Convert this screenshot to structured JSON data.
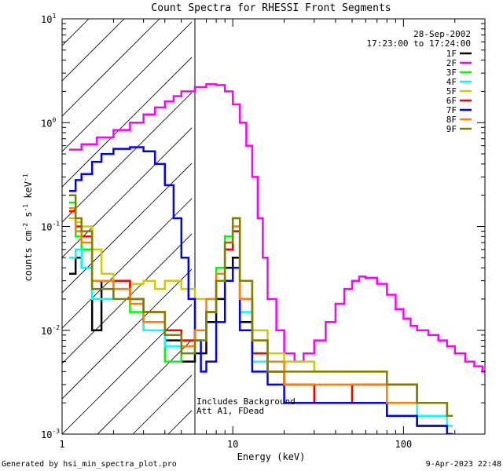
{
  "chart_data": {
    "type": "line",
    "title": "Count Spectra for RHESSI Front Segments",
    "xlabel": "Energy (keV)",
    "ylabel_main": "counts cm",
    "ylabel_exp1": "-2",
    "ylabel_mid": " s",
    "ylabel_exp2": "-1",
    "ylabel_end": " keV",
    "ylabel_exp3": "-1",
    "x_scale": "log",
    "y_scale": "log",
    "xlim": [
      1,
      300
    ],
    "ylim": [
      0.001,
      10
    ],
    "x_ticks": [
      {
        "value": 1,
        "label": "1"
      },
      {
        "value": 10,
        "label": "10"
      },
      {
        "value": 100,
        "label": "100"
      }
    ],
    "y_ticks": [
      {
        "value": 0.001,
        "base": "10",
        "exp": "-3"
      },
      {
        "value": 0.01,
        "base": "10",
        "exp": "-2"
      },
      {
        "value": 0.1,
        "base": "10",
        "exp": "-1"
      },
      {
        "value": 1,
        "base": "10",
        "exp": "0"
      },
      {
        "value": 10,
        "base": "10",
        "exp": "1"
      }
    ],
    "date": "28-Sep-2002",
    "time_range": "17:23:00 to 17:24:00",
    "attenuator_boundary_kev": 6,
    "annotations": [
      "Includes Background",
      "Att A1, FDead"
    ],
    "series": [
      {
        "name": "1F",
        "color": "#000000",
        "points": [
          [
            1.1,
            0.035
          ],
          [
            1.2,
            0.05
          ],
          [
            1.3,
            0.04
          ],
          [
            1.5,
            0.01
          ],
          [
            1.7,
            0.03
          ],
          [
            2,
            0.03
          ],
          [
            2.5,
            0.02
          ],
          [
            3,
            0.012
          ],
          [
            4,
            0.008
          ],
          [
            5,
            0.005
          ],
          [
            6,
            0.006
          ],
          [
            7,
            0.012
          ],
          [
            8,
            0.02
          ],
          [
            9,
            0.04
          ],
          [
            10,
            0.05
          ],
          [
            11,
            0.012
          ],
          [
            13,
            0.006
          ],
          [
            16,
            0.004
          ],
          [
            20,
            0.003
          ],
          [
            30,
            0.002
          ],
          [
            50,
            0.002
          ],
          [
            80,
            0.0015
          ],
          [
            120,
            0.0012
          ],
          [
            180,
            0.001
          ]
        ]
      },
      {
        "name": "2F",
        "color": "#ff00ff",
        "points": [
          [
            1.1,
            0.55
          ],
          [
            1.3,
            0.62
          ],
          [
            1.6,
            0.72
          ],
          [
            2,
            0.85
          ],
          [
            2.5,
            1.0
          ],
          [
            3,
            1.2
          ],
          [
            3.5,
            1.4
          ],
          [
            4,
            1.6
          ],
          [
            4.5,
            1.8
          ],
          [
            5,
            2.0
          ],
          [
            6,
            2.2
          ],
          [
            7,
            2.35
          ],
          [
            8,
            2.3
          ],
          [
            9,
            2.0
          ],
          [
            10,
            1.5
          ],
          [
            11,
            1.0
          ],
          [
            12,
            0.6
          ],
          [
            13,
            0.3
          ],
          [
            14,
            0.12
          ],
          [
            15,
            0.05
          ],
          [
            16,
            0.02
          ],
          [
            18,
            0.01
          ],
          [
            20,
            0.006
          ],
          [
            23,
            0.005
          ],
          [
            26,
            0.006
          ],
          [
            30,
            0.008
          ],
          [
            35,
            0.012
          ],
          [
            40,
            0.018
          ],
          [
            45,
            0.025
          ],
          [
            50,
            0.03
          ],
          [
            55,
            0.033
          ],
          [
            60,
            0.032
          ],
          [
            70,
            0.028
          ],
          [
            80,
            0.022
          ],
          [
            90,
            0.016
          ],
          [
            100,
            0.013
          ],
          [
            110,
            0.011
          ],
          [
            120,
            0.01
          ],
          [
            140,
            0.009
          ],
          [
            160,
            0.008
          ],
          [
            180,
            0.007
          ],
          [
            200,
            0.006
          ],
          [
            230,
            0.005
          ],
          [
            260,
            0.0045
          ],
          [
            290,
            0.004
          ]
        ]
      },
      {
        "name": "3F",
        "color": "#00ff00",
        "points": [
          [
            1.1,
            0.17
          ],
          [
            1.2,
            0.08
          ],
          [
            1.3,
            0.06
          ],
          [
            1.5,
            0.02
          ],
          [
            2,
            0.03
          ],
          [
            2.5,
            0.015
          ],
          [
            3,
            0.01
          ],
          [
            4,
            0.005
          ],
          [
            5,
            0.008
          ],
          [
            6,
            0.01
          ],
          [
            7,
            0.015
          ],
          [
            8,
            0.04
          ],
          [
            9,
            0.08
          ],
          [
            10,
            0.12
          ],
          [
            11,
            0.02
          ],
          [
            13,
            0.006
          ],
          [
            16,
            0.004
          ],
          [
            20,
            0.003
          ],
          [
            30,
            0.002
          ],
          [
            50,
            0.003
          ],
          [
            80,
            0.003
          ],
          [
            120,
            0.002
          ],
          [
            180,
            0.0015
          ]
        ]
      },
      {
        "name": "4F",
        "color": "#00ffff",
        "points": [
          [
            1.1,
            0.05
          ],
          [
            1.2,
            0.06
          ],
          [
            1.3,
            0.04
          ],
          [
            1.5,
            0.02
          ],
          [
            1.7,
            0.02
          ],
          [
            2,
            0.025
          ],
          [
            2.5,
            0.02
          ],
          [
            3,
            0.01
          ],
          [
            4,
            0.007
          ],
          [
            5,
            0.006
          ],
          [
            6,
            0.008
          ],
          [
            7,
            0.015
          ],
          [
            8,
            0.03
          ],
          [
            9,
            0.06
          ],
          [
            10,
            0.09
          ],
          [
            11,
            0.015
          ],
          [
            13,
            0.005
          ],
          [
            16,
            0.004
          ],
          [
            20,
            0.003
          ],
          [
            30,
            0.002
          ],
          [
            50,
            0.002
          ],
          [
            80,
            0.002
          ],
          [
            120,
            0.0015
          ],
          [
            180,
            0.0012
          ]
        ]
      },
      {
        "name": "5F",
        "color": "#cccc00",
        "points": [
          [
            1.1,
            0.12
          ],
          [
            1.2,
            0.11
          ],
          [
            1.3,
            0.1
          ],
          [
            1.5,
            0.06
          ],
          [
            1.7,
            0.035
          ],
          [
            2,
            0.03
          ],
          [
            2.5,
            0.028
          ],
          [
            3,
            0.03
          ],
          [
            3.5,
            0.025
          ],
          [
            4,
            0.03
          ],
          [
            5,
            0.025
          ],
          [
            6,
            0.02
          ],
          [
            7,
            0.02
          ],
          [
            8,
            0.03
          ],
          [
            9,
            0.06
          ],
          [
            10,
            0.1
          ],
          [
            11,
            0.03
          ],
          [
            13,
            0.01
          ],
          [
            16,
            0.006
          ],
          [
            20,
            0.005
          ],
          [
            30,
            0.004
          ],
          [
            50,
            0.004
          ],
          [
            80,
            0.003
          ],
          [
            120,
            0.002
          ],
          [
            180,
            0.0015
          ]
        ]
      },
      {
        "name": "6F",
        "color": "#ff0000",
        "points": [
          [
            1.1,
            0.14
          ],
          [
            1.2,
            0.1
          ],
          [
            1.3,
            0.08
          ],
          [
            1.5,
            0.03
          ],
          [
            2,
            0.03
          ],
          [
            2.5,
            0.02
          ],
          [
            3,
            0.015
          ],
          [
            4,
            0.01
          ],
          [
            5,
            0.008
          ],
          [
            6,
            0.01
          ],
          [
            7,
            0.015
          ],
          [
            8,
            0.03
          ],
          [
            9,
            0.06
          ],
          [
            10,
            0.09
          ],
          [
            11,
            0.02
          ],
          [
            13,
            0.006
          ],
          [
            16,
            0.004
          ],
          [
            20,
            0.003
          ],
          [
            30,
            0.002
          ],
          [
            50,
            0.003
          ],
          [
            80,
            0.003
          ],
          [
            120,
            0.002
          ],
          [
            180,
            0.0015
          ]
        ]
      },
      {
        "name": "7F",
        "color": "#0000ff",
        "points": [
          [
            1.1,
            0.22
          ],
          [
            1.2,
            0.28
          ],
          [
            1.3,
            0.32
          ],
          [
            1.5,
            0.42
          ],
          [
            1.7,
            0.5
          ],
          [
            2,
            0.56
          ],
          [
            2.5,
            0.58
          ],
          [
            3,
            0.53
          ],
          [
            3.5,
            0.4
          ],
          [
            4,
            0.25
          ],
          [
            4.5,
            0.12
          ],
          [
            5,
            0.05
          ],
          [
            5.5,
            0.02
          ],
          [
            6,
            0.008
          ],
          [
            6.5,
            0.004
          ],
          [
            7,
            0.005
          ],
          [
            8,
            0.012
          ],
          [
            9,
            0.03
          ],
          [
            10,
            0.04
          ],
          [
            11,
            0.01
          ],
          [
            13,
            0.004
          ],
          [
            16,
            0.003
          ],
          [
            20,
            0.002
          ],
          [
            30,
            0.002
          ],
          [
            50,
            0.002
          ],
          [
            80,
            0.0015
          ],
          [
            120,
            0.0012
          ],
          [
            180,
            0.001
          ]
        ]
      },
      {
        "name": "8F",
        "color": "#ff8000",
        "points": [
          [
            1.1,
            0.15
          ],
          [
            1.2,
            0.09
          ],
          [
            1.3,
            0.07
          ],
          [
            1.5,
            0.03
          ],
          [
            2,
            0.025
          ],
          [
            2.5,
            0.018
          ],
          [
            3,
            0.012
          ],
          [
            4,
            0.009
          ],
          [
            5,
            0.007
          ],
          [
            6,
            0.01
          ],
          [
            7,
            0.02
          ],
          [
            8,
            0.035
          ],
          [
            9,
            0.07
          ],
          [
            10,
            0.1
          ],
          [
            11,
            0.02
          ],
          [
            13,
            0.008
          ],
          [
            16,
            0.005
          ],
          [
            20,
            0.003
          ],
          [
            30,
            0.003
          ],
          [
            50,
            0.003
          ],
          [
            80,
            0.002
          ],
          [
            120,
            0.002
          ],
          [
            180,
            0.0015
          ]
        ]
      },
      {
        "name": "9F",
        "color": "#808000",
        "points": [
          [
            1.1,
            0.2
          ],
          [
            1.2,
            0.12
          ],
          [
            1.3,
            0.09
          ],
          [
            1.5,
            0.025
          ],
          [
            2,
            0.02
          ],
          [
            2.5,
            0.02
          ],
          [
            3,
            0.015
          ],
          [
            4,
            0.009
          ],
          [
            5,
            0.006
          ],
          [
            6,
            0.008
          ],
          [
            7,
            0.015
          ],
          [
            8,
            0.03
          ],
          [
            9,
            0.07
          ],
          [
            10,
            0.12
          ],
          [
            11,
            0.03
          ],
          [
            13,
            0.008
          ],
          [
            16,
            0.004
          ],
          [
            20,
            0.004
          ],
          [
            30,
            0.004
          ],
          [
            50,
            0.004
          ],
          [
            80,
            0.003
          ],
          [
            120,
            0.002
          ],
          [
            180,
            0.0015
          ]
        ]
      }
    ]
  },
  "footer": {
    "generated_by": "Generated by hsi_min_spectra_plot.pro",
    "timestamp": "9-Apr-2023 22:48"
  }
}
